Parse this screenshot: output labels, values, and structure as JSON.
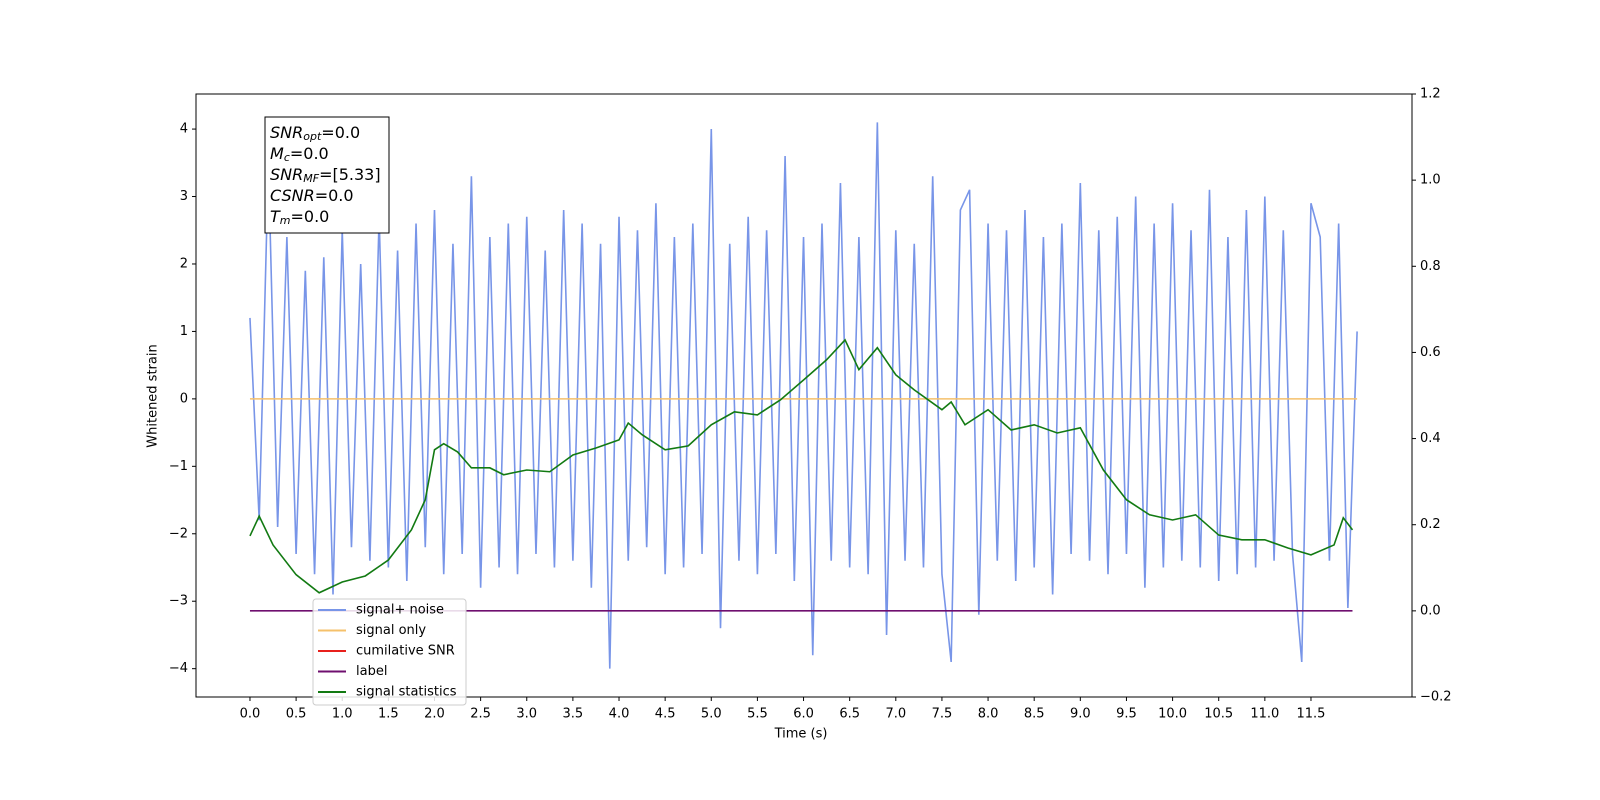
{
  "chart_data": {
    "type": "line",
    "xlabel": "Time (s)",
    "ylabel": "Whitened strain",
    "xlim": [
      -0.585,
      12.595
    ],
    "ylim": [
      -4.42,
      4.52
    ],
    "y2lim": [
      -0.2,
      1.2
    ],
    "xticks": [
      {
        "value": 0,
        "label": "0.0"
      },
      0.5,
      {
        "value": 1,
        "label": "1.0"
      },
      1.5,
      {
        "value": 2,
        "label": "2.0"
      },
      2.5,
      {
        "value": 3,
        "label": "3.0"
      },
      3.5,
      {
        "value": 4,
        "label": "4.0"
      },
      4.5,
      {
        "value": 5,
        "label": "5.0"
      },
      5.5,
      {
        "value": 6,
        "label": "6.0"
      },
      6.5,
      {
        "value": 7,
        "label": "7.0"
      },
      7.5,
      {
        "value": 8,
        "label": "8.0"
      },
      8.5,
      {
        "value": 9,
        "label": "9.0"
      },
      9.5,
      {
        "value": 10,
        "label": "10.0"
      },
      10.5,
      {
        "value": 11,
        "label": "11.0"
      },
      11.5
    ],
    "yticks": [
      {
        "value": -4,
        "label": "−4"
      },
      {
        "value": -3,
        "label": "−3"
      },
      {
        "value": -2,
        "label": "−2"
      },
      {
        "value": -1,
        "label": "−1"
      },
      0,
      1,
      2,
      3,
      4
    ],
    "y2ticks": [
      {
        "value": -0.2,
        "label": "−0.2"
      },
      {
        "value": 0,
        "label": "0.0"
      },
      0.2,
      0.4,
      0.6,
      0.8,
      {
        "value": 1,
        "label": "1.0"
      },
      1.2
    ],
    "legend": "lower left",
    "annotation": [
      {
        "base": "SNR",
        "sub": "opt",
        "rest": "=0.0"
      },
      {
        "base": "M",
        "sub": "c",
        "rest": "=0.0"
      },
      {
        "base": "SNR",
        "sub": "MF",
        "rest": "=[5.33]"
      },
      {
        "base": "CSNR",
        "rest": "=0.0"
      },
      {
        "base": "T",
        "sub": "m",
        "rest": "=0.0"
      }
    ],
    "series": [
      {
        "name": "signal+ noise",
        "color": "#7895e8",
        "x": [
          0,
          0.1,
          0.2,
          0.3,
          0.4,
          0.5,
          0.6,
          0.7,
          0.8,
          0.9,
          1,
          1.1,
          1.2,
          1.3,
          1.4,
          1.5,
          1.6,
          1.7,
          1.8,
          1.9,
          2,
          2.1,
          2.2,
          2.3,
          2.4,
          2.5,
          2.6,
          2.7,
          2.8,
          2.9,
          3,
          3.1,
          3.2,
          3.3,
          3.4,
          3.5,
          3.6,
          3.7,
          3.8,
          3.9,
          4,
          4.1,
          4.2,
          4.3,
          4.4,
          4.5,
          4.6,
          4.7,
          4.8,
          4.9,
          5,
          5.1,
          5.2,
          5.3,
          5.4,
          5.5,
          5.6,
          5.7,
          5.8,
          5.9,
          6,
          6.1,
          6.2,
          6.3,
          6.4,
          6.5,
          6.6,
          6.7,
          6.8,
          6.9,
          7,
          7.1,
          7.2,
          7.3,
          7.4,
          7.5,
          7.6,
          7.7,
          7.8,
          7.9,
          8,
          8.1,
          8.2,
          8.3,
          8.4,
          8.5,
          8.6,
          8.7,
          8.8,
          8.9,
          9,
          9.1,
          9.2,
          9.3,
          9.4,
          9.5,
          9.6,
          9.7,
          9.8,
          9.9,
          10,
          10.1,
          10.2,
          10.3,
          10.4,
          10.5,
          10.6,
          10.7,
          10.8,
          10.9,
          11,
          11.1,
          11.2,
          11.3,
          11.4,
          11.5,
          11.6,
          11.7,
          11.8,
          11.9,
          12
        ],
        "values": [
          1.2,
          -1.8,
          3.5,
          -1.9,
          2.4,
          -2.3,
          1.9,
          -2.6,
          2.1,
          -2.9,
          2.5,
          -2.2,
          2.0,
          -2.4,
          2.7,
          -2.5,
          2.2,
          -2.7,
          2.6,
          -2.2,
          2.8,
          -2.6,
          2.3,
          -2.3,
          3.3,
          -2.8,
          2.4,
          -2.5,
          2.6,
          -2.6,
          2.7,
          -2.3,
          2.2,
          -2.5,
          2.8,
          -2.4,
          2.6,
          -2.8,
          2.3,
          -4.0,
          2.7,
          -2.4,
          2.5,
          -2.2,
          2.9,
          -2.6,
          2.4,
          -2.5,
          2.6,
          -2.3,
          4.0,
          -3.4,
          2.3,
          -2.4,
          2.7,
          -2.6,
          2.5,
          -2.3,
          3.6,
          -2.7,
          2.4,
          -3.8,
          2.6,
          -2.4,
          3.2,
          -2.5,
          2.4,
          -2.6,
          4.1,
          -3.5,
          2.5,
          -2.4,
          2.3,
          -2.5,
          3.3,
          -2.6,
          -3.9,
          2.8,
          3.1,
          -3.2,
          2.6,
          -2.4,
          2.5,
          -2.7,
          2.8,
          -2.5,
          2.4,
          -2.9,
          2.6,
          -2.3,
          3.2,
          -2.4,
          2.5,
          -2.6,
          2.7,
          -2.3,
          3.0,
          -2.8,
          2.6,
          -2.5,
          2.9,
          -2.4,
          2.5,
          -2.5,
          3.1,
          -2.7,
          2.4,
          -2.6,
          2.8,
          -2.5,
          3.0,
          -2.4,
          2.5,
          -2.3,
          -3.9,
          2.9,
          2.4,
          -2.4,
          2.6,
          -3.1,
          1.0
        ]
      },
      {
        "name": "signal only",
        "color": "#f5c16b",
        "x": [
          0,
          12
        ],
        "values": [
          0,
          0
        ]
      },
      {
        "name": "cumilative SNR",
        "color": "#e8201c"
      },
      {
        "name": "label",
        "color": "#6f0f6f",
        "axis": "y2",
        "x": [
          0,
          11.95
        ],
        "values": [
          0,
          0
        ]
      },
      {
        "name": "signal statistics",
        "color": "#127a12",
        "axis": "y2",
        "x": [
          0,
          0.1,
          0.25,
          0.5,
          0.75,
          1,
          1.25,
          1.5,
          1.75,
          1.9,
          2,
          2.1,
          2.25,
          2.4,
          2.6,
          2.75,
          3,
          3.25,
          3.5,
          3.75,
          4,
          4.1,
          4.25,
          4.5,
          4.75,
          5,
          5.25,
          5.5,
          5.75,
          6,
          6.25,
          6.45,
          6.6,
          6.8,
          7,
          7.2,
          7.5,
          7.6,
          7.75,
          8,
          8.25,
          8.5,
          8.75,
          9,
          9.25,
          9.5,
          9.75,
          10,
          10.25,
          10.5,
          10.75,
          11,
          11.25,
          11.5,
          11.75,
          11.85,
          11.95
        ],
        "values": [
          0.174,
          0.22,
          0.153,
          0.084,
          0.042,
          0.067,
          0.081,
          0.118,
          0.188,
          0.258,
          0.374,
          0.388,
          0.369,
          0.332,
          0.332,
          0.316,
          0.327,
          0.323,
          0.362,
          0.378,
          0.397,
          0.436,
          0.409,
          0.374,
          0.383,
          0.432,
          0.462,
          0.455,
          0.49,
          0.536,
          0.583,
          0.629,
          0.56,
          0.611,
          0.548,
          0.513,
          0.467,
          0.485,
          0.432,
          0.467,
          0.42,
          0.432,
          0.413,
          0.425,
          0.327,
          0.258,
          0.223,
          0.211,
          0.223,
          0.176,
          0.165,
          0.165,
          0.146,
          0.13,
          0.153,
          0.216,
          0.188
        ]
      }
    ]
  }
}
